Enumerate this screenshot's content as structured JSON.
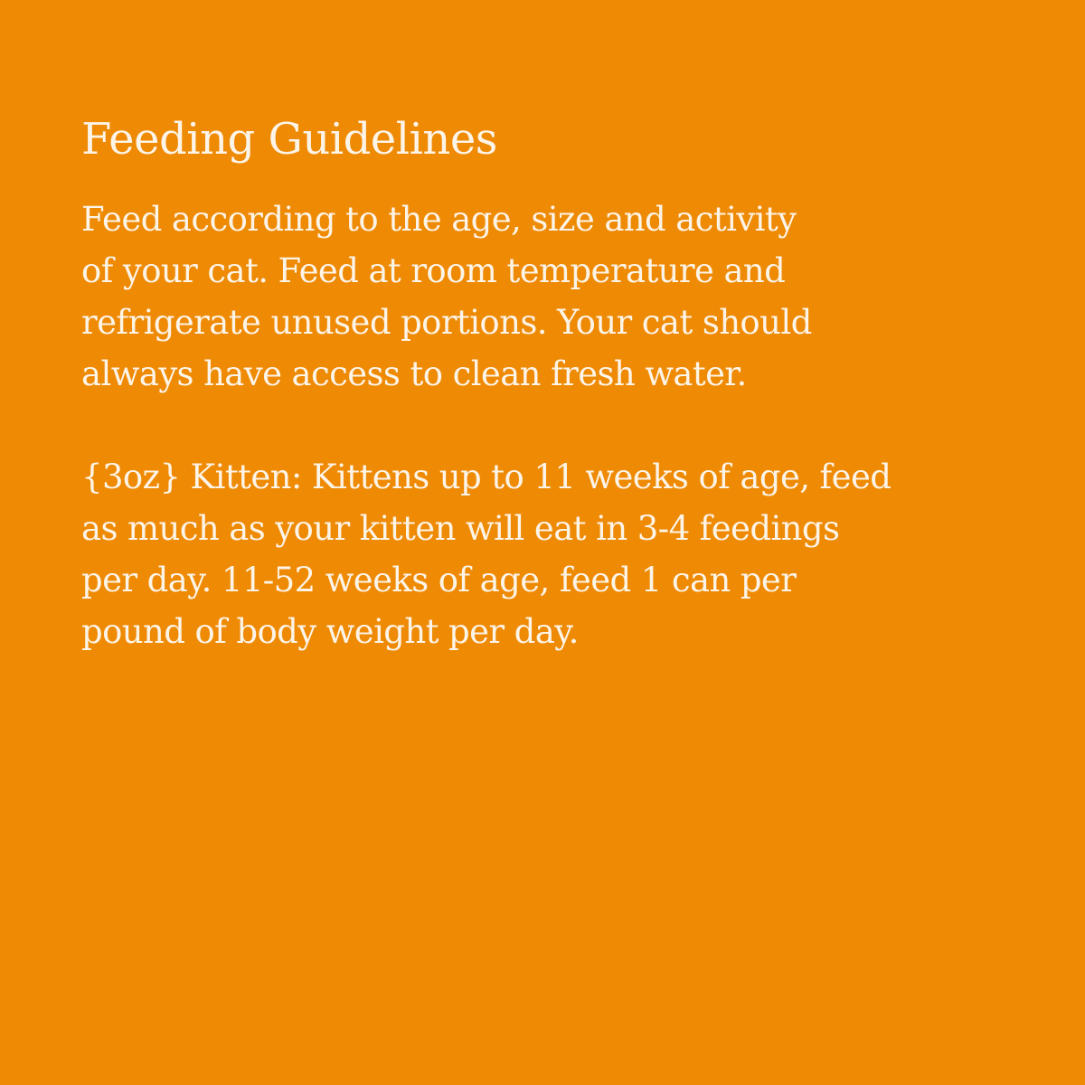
{
  "title": "Feeding Guidelines",
  "paragraph1": [
    "Feed according to the age, size and activity",
    "of your cat. Feed at room temperature and",
    "refrigerate unused portions. Your cat should",
    "always have access to clean fresh water."
  ],
  "paragraph2": [
    "{3oz} Kitten: Kittens up to 11 weeks of age, feed",
    "as much as your kitten will eat in 3-4 feedings",
    "per day. 11-52 weeks of age, feed 1 can per",
    "pound of body weight per day."
  ],
  "colors": {
    "background": "#ee8a04",
    "text": "#fdf4e8"
  }
}
